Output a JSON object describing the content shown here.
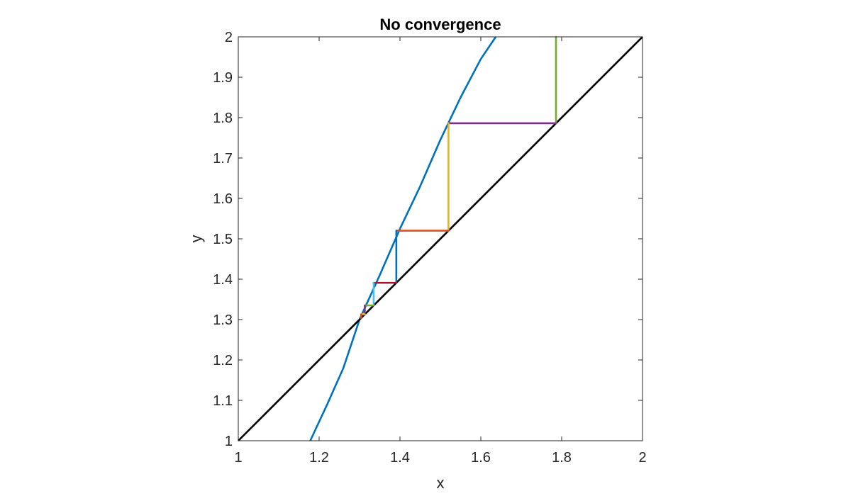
{
  "chart_data": {
    "type": "line",
    "title": "No convergence",
    "xlabel": "x",
    "ylabel": "y",
    "xlim": [
      1,
      2
    ],
    "ylim": [
      1,
      2
    ],
    "xticks": [
      "1",
      "1.2",
      "1.4",
      "1.6",
      "1.8",
      "2"
    ],
    "yticks": [
      "1",
      "1.1",
      "1.2",
      "1.3",
      "1.4",
      "1.5",
      "1.6",
      "1.7",
      "1.8",
      "1.9",
      "2"
    ],
    "grid": false,
    "legend": "none",
    "series": [
      {
        "color": "#0072BD",
        "x": [
          1.178,
          1.22,
          1.26,
          1.3,
          1.35,
          1.4,
          1.45,
          1.5,
          1.55,
          1.6,
          1.637
        ],
        "y": [
          1.0,
          1.09,
          1.18,
          1.3,
          1.41,
          1.525,
          1.63,
          1.745,
          1.85,
          1.945,
          2.0
        ]
      },
      {
        "color": "#000000",
        "x": [
          1,
          2
        ],
        "y": [
          1,
          2
        ]
      }
    ],
    "cobweb_segments": [
      {
        "color": "#77AC30",
        "x": [
          1.786,
          1.786
        ],
        "y": [
          1.786,
          2.0
        ]
      },
      {
        "color": "#7E2F8E",
        "x": [
          1.786,
          1.52
        ],
        "y": [
          1.786,
          1.786
        ]
      },
      {
        "color": "#EDB120",
        "x": [
          1.52,
          1.52
        ],
        "y": [
          1.786,
          1.52
        ]
      },
      {
        "color": "#D95319",
        "x": [
          1.52,
          1.391
        ],
        "y": [
          1.52,
          1.52
        ]
      },
      {
        "color": "#0072BD",
        "x": [
          1.391,
          1.391
        ],
        "y": [
          1.52,
          1.391
        ]
      },
      {
        "color": "#A2142F",
        "x": [
          1.391,
          1.335
        ],
        "y": [
          1.391,
          1.391
        ]
      },
      {
        "color": "#4DBEEE",
        "x": [
          1.335,
          1.335
        ],
        "y": [
          1.391,
          1.335
        ]
      },
      {
        "color": "#77AC30",
        "x": [
          1.335,
          1.313
        ],
        "y": [
          1.335,
          1.335
        ]
      },
      {
        "color": "#7E2F8E",
        "x": [
          1.313,
          1.313
        ],
        "y": [
          1.335,
          1.313
        ]
      },
      {
        "color": "#EDB120",
        "x": [
          1.313,
          1.304
        ],
        "y": [
          1.313,
          1.313
        ]
      },
      {
        "color": "#D95319",
        "x": [
          1.304,
          1.304
        ],
        "y": [
          1.313,
          1.304
        ]
      }
    ]
  }
}
